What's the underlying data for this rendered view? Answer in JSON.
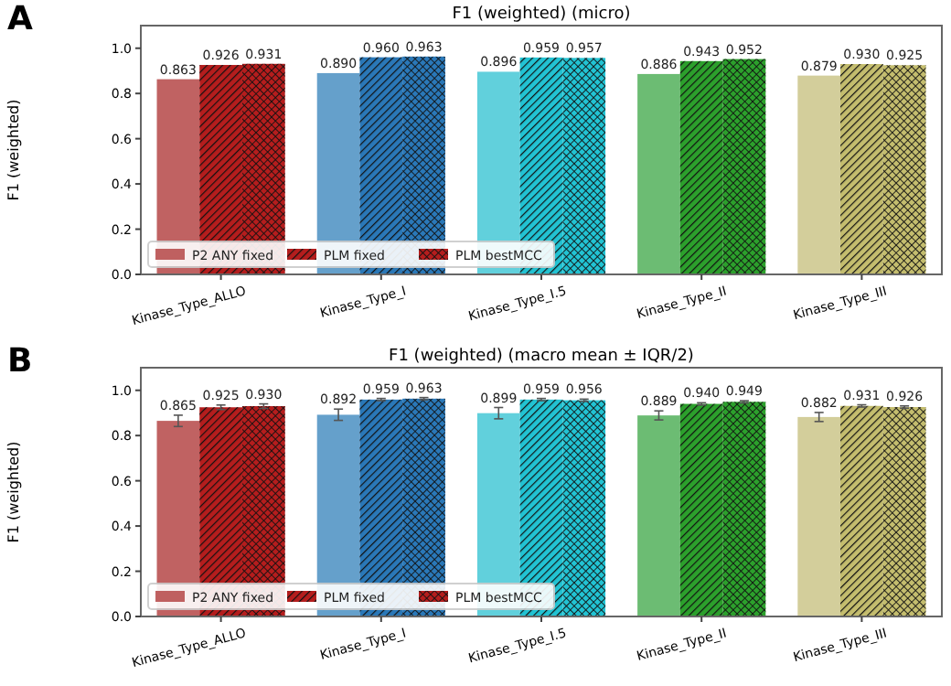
{
  "chart_data": [
    {
      "type": "bar",
      "title": "F1 (weighted) (micro)",
      "ylabel": "F1 (weighted)",
      "annotations": [
        "A"
      ],
      "categories": [
        "Kinase_Type_ALLO",
        "Kinase_Type_I",
        "Kinase_Type_I.5",
        "Kinase_Type_II",
        "Kinase_Type_III"
      ],
      "series": [
        {
          "name": "P2 ANY fixed",
          "colors": [
            "#b54646",
            "#4a8fc2",
            "#45c8d6",
            "#52b05a",
            "#cbc68a"
          ],
          "values": [
            0.863,
            0.89,
            0.896,
            0.886,
            0.879
          ],
          "value_labels": [
            "0.863",
            "0.890",
            "0.896",
            "0.886",
            "0.879"
          ]
        },
        {
          "name": "PLM fixed",
          "colors": [
            "#b51d1d",
            "#2a78b8",
            "#22c3d3",
            "#2ca02c",
            "#c4bd6e"
          ],
          "values": [
            0.926,
            0.96,
            0.959,
            0.943,
            0.93
          ],
          "value_labels": [
            "0.926",
            "0.960",
            "0.959",
            "0.943",
            "0.930"
          ]
        },
        {
          "name": "PLM bestMCC",
          "colors": [
            "#b51d1d",
            "#2a78b8",
            "#22c3d3",
            "#2ca02c",
            "#c4bd6e"
          ],
          "values": [
            0.931,
            0.963,
            0.957,
            0.952,
            0.925
          ],
          "value_labels": [
            "0.931",
            "0.963",
            "0.957",
            "0.952",
            "0.925"
          ]
        }
      ],
      "ylim": [
        0,
        1.1
      ],
      "yticks": [
        {
          "value": 0,
          "label": "0.0"
        },
        {
          "value": 0.2,
          "label": "0.2"
        },
        {
          "value": 0.4,
          "label": "0.4"
        },
        {
          "value": 0.6,
          "label": "0.6"
        },
        {
          "value": 0.8,
          "label": "0.8"
        },
        {
          "value": 1,
          "label": "1.0"
        }
      ],
      "legend": "bottom left"
    },
    {
      "type": "bar",
      "title": "F1 (weighted) (macro mean ± IQR/2)",
      "ylabel": "F1 (weighted)",
      "annotations": [
        "B"
      ],
      "categories": [
        "Kinase_Type_ALLO",
        "Kinase_Type_I",
        "Kinase_Type_I.5",
        "Kinase_Type_II",
        "Kinase_Type_III"
      ],
      "series": [
        {
          "name": "P2 ANY fixed",
          "colors": [
            "#b54646",
            "#4a8fc2",
            "#45c8d6",
            "#52b05a",
            "#cbc68a"
          ],
          "values": [
            0.865,
            0.892,
            0.899,
            0.889,
            0.882
          ],
          "errors": [
            0.025,
            0.025,
            0.025,
            0.02,
            0.02
          ],
          "value_labels": [
            "0.865",
            "0.892",
            "0.899",
            "0.889",
            "0.882"
          ]
        },
        {
          "name": "PLM fixed",
          "colors": [
            "#b51d1d",
            "#2a78b8",
            "#22c3d3",
            "#2ca02c",
            "#c4bd6e"
          ],
          "values": [
            0.925,
            0.959,
            0.959,
            0.94,
            0.931
          ],
          "errors": [
            0.01,
            0.005,
            0.005,
            0.005,
            0.005
          ],
          "value_labels": [
            "0.925",
            "0.959",
            "0.959",
            "0.940",
            "0.931"
          ]
        },
        {
          "name": "PLM bestMCC",
          "colors": [
            "#b51d1d",
            "#2a78b8",
            "#22c3d3",
            "#2ca02c",
            "#c4bd6e"
          ],
          "values": [
            0.93,
            0.963,
            0.956,
            0.949,
            0.926
          ],
          "errors": [
            0.01,
            0.005,
            0.005,
            0.005,
            0.005
          ],
          "value_labels": [
            "0.930",
            "0.963",
            "0.956",
            "0.949",
            "0.926"
          ]
        }
      ],
      "ylim": [
        0,
        1.1
      ],
      "yticks": [
        {
          "value": 0,
          "label": "0.0"
        },
        {
          "value": 0.2,
          "label": "0.2"
        },
        {
          "value": 0.4,
          "label": "0.4"
        },
        {
          "value": 0.6,
          "label": "0.6"
        },
        {
          "value": 0.8,
          "label": "0.8"
        },
        {
          "value": 1,
          "label": "1.0"
        }
      ],
      "legend": "bottom left"
    }
  ]
}
